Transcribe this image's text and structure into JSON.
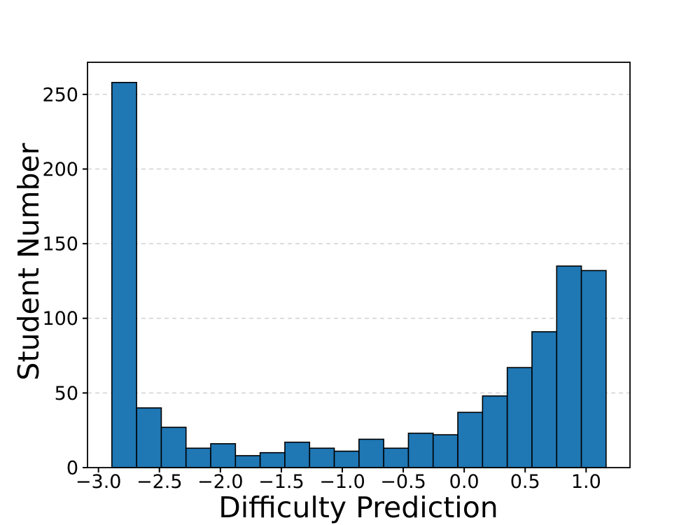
{
  "chart_data": {
    "type": "bar",
    "subtype": "histogram",
    "title": "",
    "xlabel": "Difficulty Prediction",
    "ylabel": "Student Number",
    "bin_start": -2.89,
    "bin_width": 0.2027,
    "bin_count": 20,
    "values": [
      258,
      40,
      27,
      13,
      16,
      8,
      10,
      17,
      13,
      11,
      19,
      13,
      23,
      22,
      37,
      48,
      67,
      91,
      135,
      132
    ],
    "total_count": 1000,
    "x_ticks": [
      -3.0,
      -2.5,
      -2.0,
      -1.5,
      -1.0,
      -0.5,
      0.0,
      0.5,
      1.0
    ],
    "x_tick_labels": [
      "−3.0",
      "−2.5",
      "−2.0",
      "−1.5",
      "−1.0",
      "−0.5",
      "0.0",
      "0.5",
      "1.0"
    ],
    "y_ticks": [
      0,
      50,
      100,
      150,
      200,
      250
    ],
    "y_tick_labels": [
      "0",
      "50",
      "100",
      "150",
      "200",
      "250"
    ],
    "xlim": [
      -3.09,
      1.36
    ],
    "ylim": [
      0,
      271.5
    ],
    "grid": {
      "axis": "y",
      "style": "dashed",
      "color": "#c9c9c9"
    },
    "legend": null,
    "colors": {
      "bar_fill": "#1f77b4",
      "bar_edge": "#000000",
      "spine": "#000000",
      "tick": "#000000",
      "text": "#000000",
      "background": "#ffffff"
    }
  }
}
